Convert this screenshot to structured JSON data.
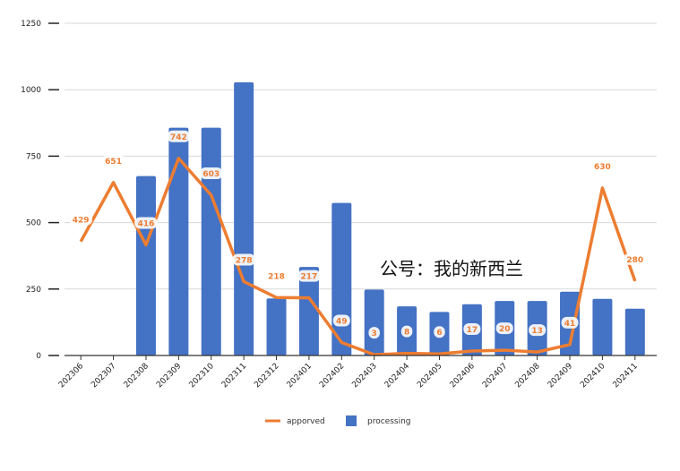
{
  "chart_data": {
    "type": "bar",
    "categories": [
      "202306",
      "202307",
      "202308",
      "202309",
      "202310",
      "202311",
      "202312",
      "202401",
      "202402",
      "202403",
      "202404",
      "202405",
      "202406",
      "202407",
      "202408",
      "202409",
      "202410",
      "202411"
    ],
    "series": [
      {
        "name": "processing",
        "type": "bar",
        "color": "#4472C4",
        "values": [
          0,
          0,
          675,
          857,
          857,
          1028,
          215,
          333,
          574,
          248,
          185,
          164,
          193,
          205,
          205,
          240,
          213,
          176
        ]
      },
      {
        "name": "apporved",
        "type": "line",
        "color": "#ED7D31",
        "values": [
          429,
          651,
          416,
          742,
          603,
          278,
          218,
          217,
          49,
          3,
          8,
          6,
          17,
          20,
          13,
          41,
          630,
          280
        ],
        "data_labels": [
          "429",
          "651",
          "416",
          "742",
          "603",
          "278",
          "218",
          "217",
          "49",
          "3",
          "8",
          "6",
          "17",
          "20",
          "13",
          "41",
          "630",
          "280"
        ]
      }
    ],
    "yticks": [
      0,
      250,
      500,
      750,
      1000,
      1250
    ],
    "ylim": [
      0,
      1250
    ],
    "grid": true,
    "legend_position": "bottom"
  },
  "watermark": "公号：我的新西兰"
}
